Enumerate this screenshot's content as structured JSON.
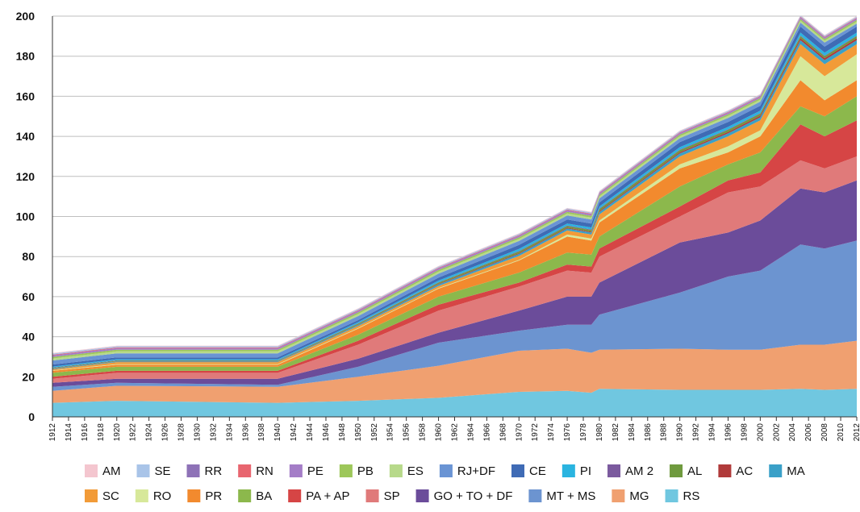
{
  "chart_data": {
    "type": "stacked-area",
    "x": [
      1912,
      1920,
      1940,
      1950,
      1960,
      1970,
      1976,
      1979,
      1980,
      1990,
      1996,
      2000,
      2005,
      2008,
      2012
    ],
    "xlim": [
      1912,
      2012
    ],
    "xticks": [
      1912,
      1914,
      1916,
      1918,
      1920,
      1922,
      1924,
      1926,
      1928,
      1930,
      1932,
      1934,
      1936,
      1938,
      1940,
      1942,
      1944,
      1946,
      1948,
      1950,
      1952,
      1954,
      1956,
      1958,
      1960,
      1962,
      1964,
      1966,
      1968,
      1970,
      1972,
      1974,
      1976,
      1978,
      1980,
      1982,
      1984,
      1986,
      1988,
      1990,
      1992,
      1994,
      1996,
      1998,
      2000,
      2002,
      2004,
      2006,
      2008,
      2010,
      2012
    ],
    "ylim": [
      0,
      200
    ],
    "yticks": [
      0,
      20,
      40,
      60,
      80,
      100,
      120,
      140,
      160,
      180,
      200
    ],
    "grid": true,
    "series": [
      {
        "name": "AM",
        "color": "#f4c6cf",
        "values": [
          0.3,
          0.3,
          0.3,
          0.3,
          0.3,
          0.3,
          0.3,
          0.3,
          0.3,
          0.3,
          0.3,
          0.3,
          0.3,
          0.3,
          0.3
        ]
      },
      {
        "name": "SE",
        "color": "#a9c4e8",
        "values": [
          0.5,
          0.5,
          0.5,
          0.5,
          0.5,
          0.5,
          0.5,
          0.5,
          0.5,
          0.5,
          0.5,
          0.5,
          0.5,
          0.5,
          0.5
        ]
      },
      {
        "name": "RR",
        "color": "#8e72b7",
        "values": [
          0.1,
          0.1,
          0.1,
          0.1,
          0.1,
          0.1,
          0.1,
          0.1,
          0.1,
          0.1,
          0.1,
          0.1,
          0.1,
          0.1,
          0.1
        ]
      },
      {
        "name": "RN",
        "color": "#e8656f",
        "values": [
          0.3,
          0.3,
          0.3,
          0.3,
          0.3,
          0.3,
          0.3,
          0.3,
          0.3,
          0.3,
          0.3,
          0.3,
          0.3,
          0.3,
          0.3
        ]
      },
      {
        "name": "PE",
        "color": "#a47dc7",
        "values": [
          0.8,
          0.8,
          0.8,
          0.8,
          0.8,
          0.8,
          0.8,
          0.8,
          0.8,
          0.8,
          0.8,
          0.8,
          0.8,
          0.8,
          0.8
        ]
      },
      {
        "name": "PB",
        "color": "#9dc75a",
        "values": [
          0.8,
          0.8,
          0.8,
          0.8,
          0.8,
          0.8,
          0.8,
          0.8,
          0.8,
          0.8,
          0.8,
          0.8,
          0.8,
          0.8,
          0.8
        ]
      },
      {
        "name": "ES",
        "color": "#b7d98a",
        "values": [
          1,
          1,
          1,
          1,
          1,
          1,
          1,
          1,
          1,
          1,
          1,
          1,
          1,
          1,
          1
        ]
      },
      {
        "name": "RJ+DF",
        "color": "#6a94d4",
        "values": [
          2,
          2,
          2,
          2,
          2,
          2,
          2,
          2,
          2,
          2,
          2,
          2,
          2,
          2,
          1.5
        ]
      },
      {
        "name": "CE",
        "color": "#3f6bb5",
        "values": [
          1,
          1,
          1,
          1,
          1.5,
          2,
          2,
          2,
          2,
          2.5,
          2.5,
          2.5,
          3,
          3,
          3
        ]
      },
      {
        "name": "PI",
        "color": "#2ab4e0",
        "values": [
          0.5,
          0.5,
          0.5,
          0.6,
          0.8,
          1,
          1,
          1,
          1,
          1.2,
          1.2,
          1.2,
          1.5,
          1.5,
          1.5
        ]
      },
      {
        "name": "AM 2",
        "color": "#7b5a9e",
        "values": [
          0.2,
          0.2,
          0.2,
          0.2,
          0.2,
          0.3,
          0.3,
          0.3,
          0.3,
          0.3,
          0.3,
          0.3,
          0.3,
          0.3,
          0.3
        ]
      },
      {
        "name": "AL",
        "color": "#6f9a3e",
        "values": [
          0.3,
          0.3,
          0.3,
          0.5,
          0.6,
          0.8,
          0.8,
          0.8,
          1,
          1,
          1,
          1,
          1,
          1,
          1
        ]
      },
      {
        "name": "AC",
        "color": "#b03a3a",
        "values": [
          0.1,
          0.1,
          0.1,
          0.2,
          0.3,
          0.4,
          0.4,
          0.4,
          0.5,
          0.6,
          0.7,
          0.8,
          1,
          1,
          1
        ]
      },
      {
        "name": "MA",
        "color": "#3aa0c8",
        "values": [
          0.3,
          0.3,
          0.3,
          0.5,
          0.8,
          1,
          1,
          1,
          1.2,
          1.5,
          1.5,
          1.5,
          2,
          2,
          2
        ]
      },
      {
        "name": "SC",
        "color": "#f29b38",
        "values": [
          0.5,
          1,
          1,
          1,
          1,
          2,
          2,
          2,
          3,
          4,
          5,
          5,
          6,
          6,
          5
        ]
      },
      {
        "name": "RO",
        "color": "#d7e89a",
        "values": [
          0.2,
          0.3,
          0.3,
          0.3,
          0.3,
          0.3,
          1,
          1,
          1,
          2,
          3,
          3,
          12,
          12,
          13
        ]
      },
      {
        "name": "PR",
        "color": "#f28a2e",
        "values": [
          1,
          1,
          1,
          3,
          4,
          6,
          8,
          7,
          7,
          9,
          6,
          8,
          13,
          8,
          8
        ]
      },
      {
        "name": "BA",
        "color": "#8cb84c",
        "values": [
          2,
          2,
          2,
          3,
          4,
          5,
          6,
          6,
          6,
          10,
          8,
          10,
          9,
          10,
          12
        ]
      },
      {
        "name": "PA + AP",
        "color": "#d64545",
        "values": [
          1,
          1,
          1,
          2,
          3,
          2,
          3,
          3,
          4,
          5,
          6,
          7,
          18,
          16,
          18
        ]
      },
      {
        "name": "SP",
        "color": "#e07a7a",
        "values": [
          2,
          3,
          3,
          7,
          11,
          12,
          13,
          12,
          13,
          13,
          20,
          17,
          14,
          12,
          12
        ]
      },
      {
        "name": "GO + TO + DF",
        "color": "#6b4c9a",
        "values": [
          2,
          2,
          3,
          4,
          5,
          10,
          14,
          14,
          16,
          25,
          22,
          25,
          28,
          28,
          30
        ]
      },
      {
        "name": "MT + MS",
        "color": "#6c94d0",
        "values": [
          2,
          1.5,
          1,
          5,
          11.5,
          10,
          12,
          14,
          17.5,
          28,
          36.5,
          39.5,
          50,
          48,
          50
        ]
      },
      {
        "name": "MG",
        "color": "#f0a070",
        "values": [
          6,
          7.5,
          8,
          12,
          16,
          20.5,
          21,
          20,
          19.5,
          20.5,
          20,
          20,
          22,
          22.5,
          24
        ]
      },
      {
        "name": "RS",
        "color": "#70c7e0",
        "values": [
          7,
          8,
          7,
          8,
          9.5,
          12.5,
          13,
          12,
          14,
          13.5,
          13.5,
          13.5,
          14,
          13.5,
          14
        ]
      }
    ]
  }
}
